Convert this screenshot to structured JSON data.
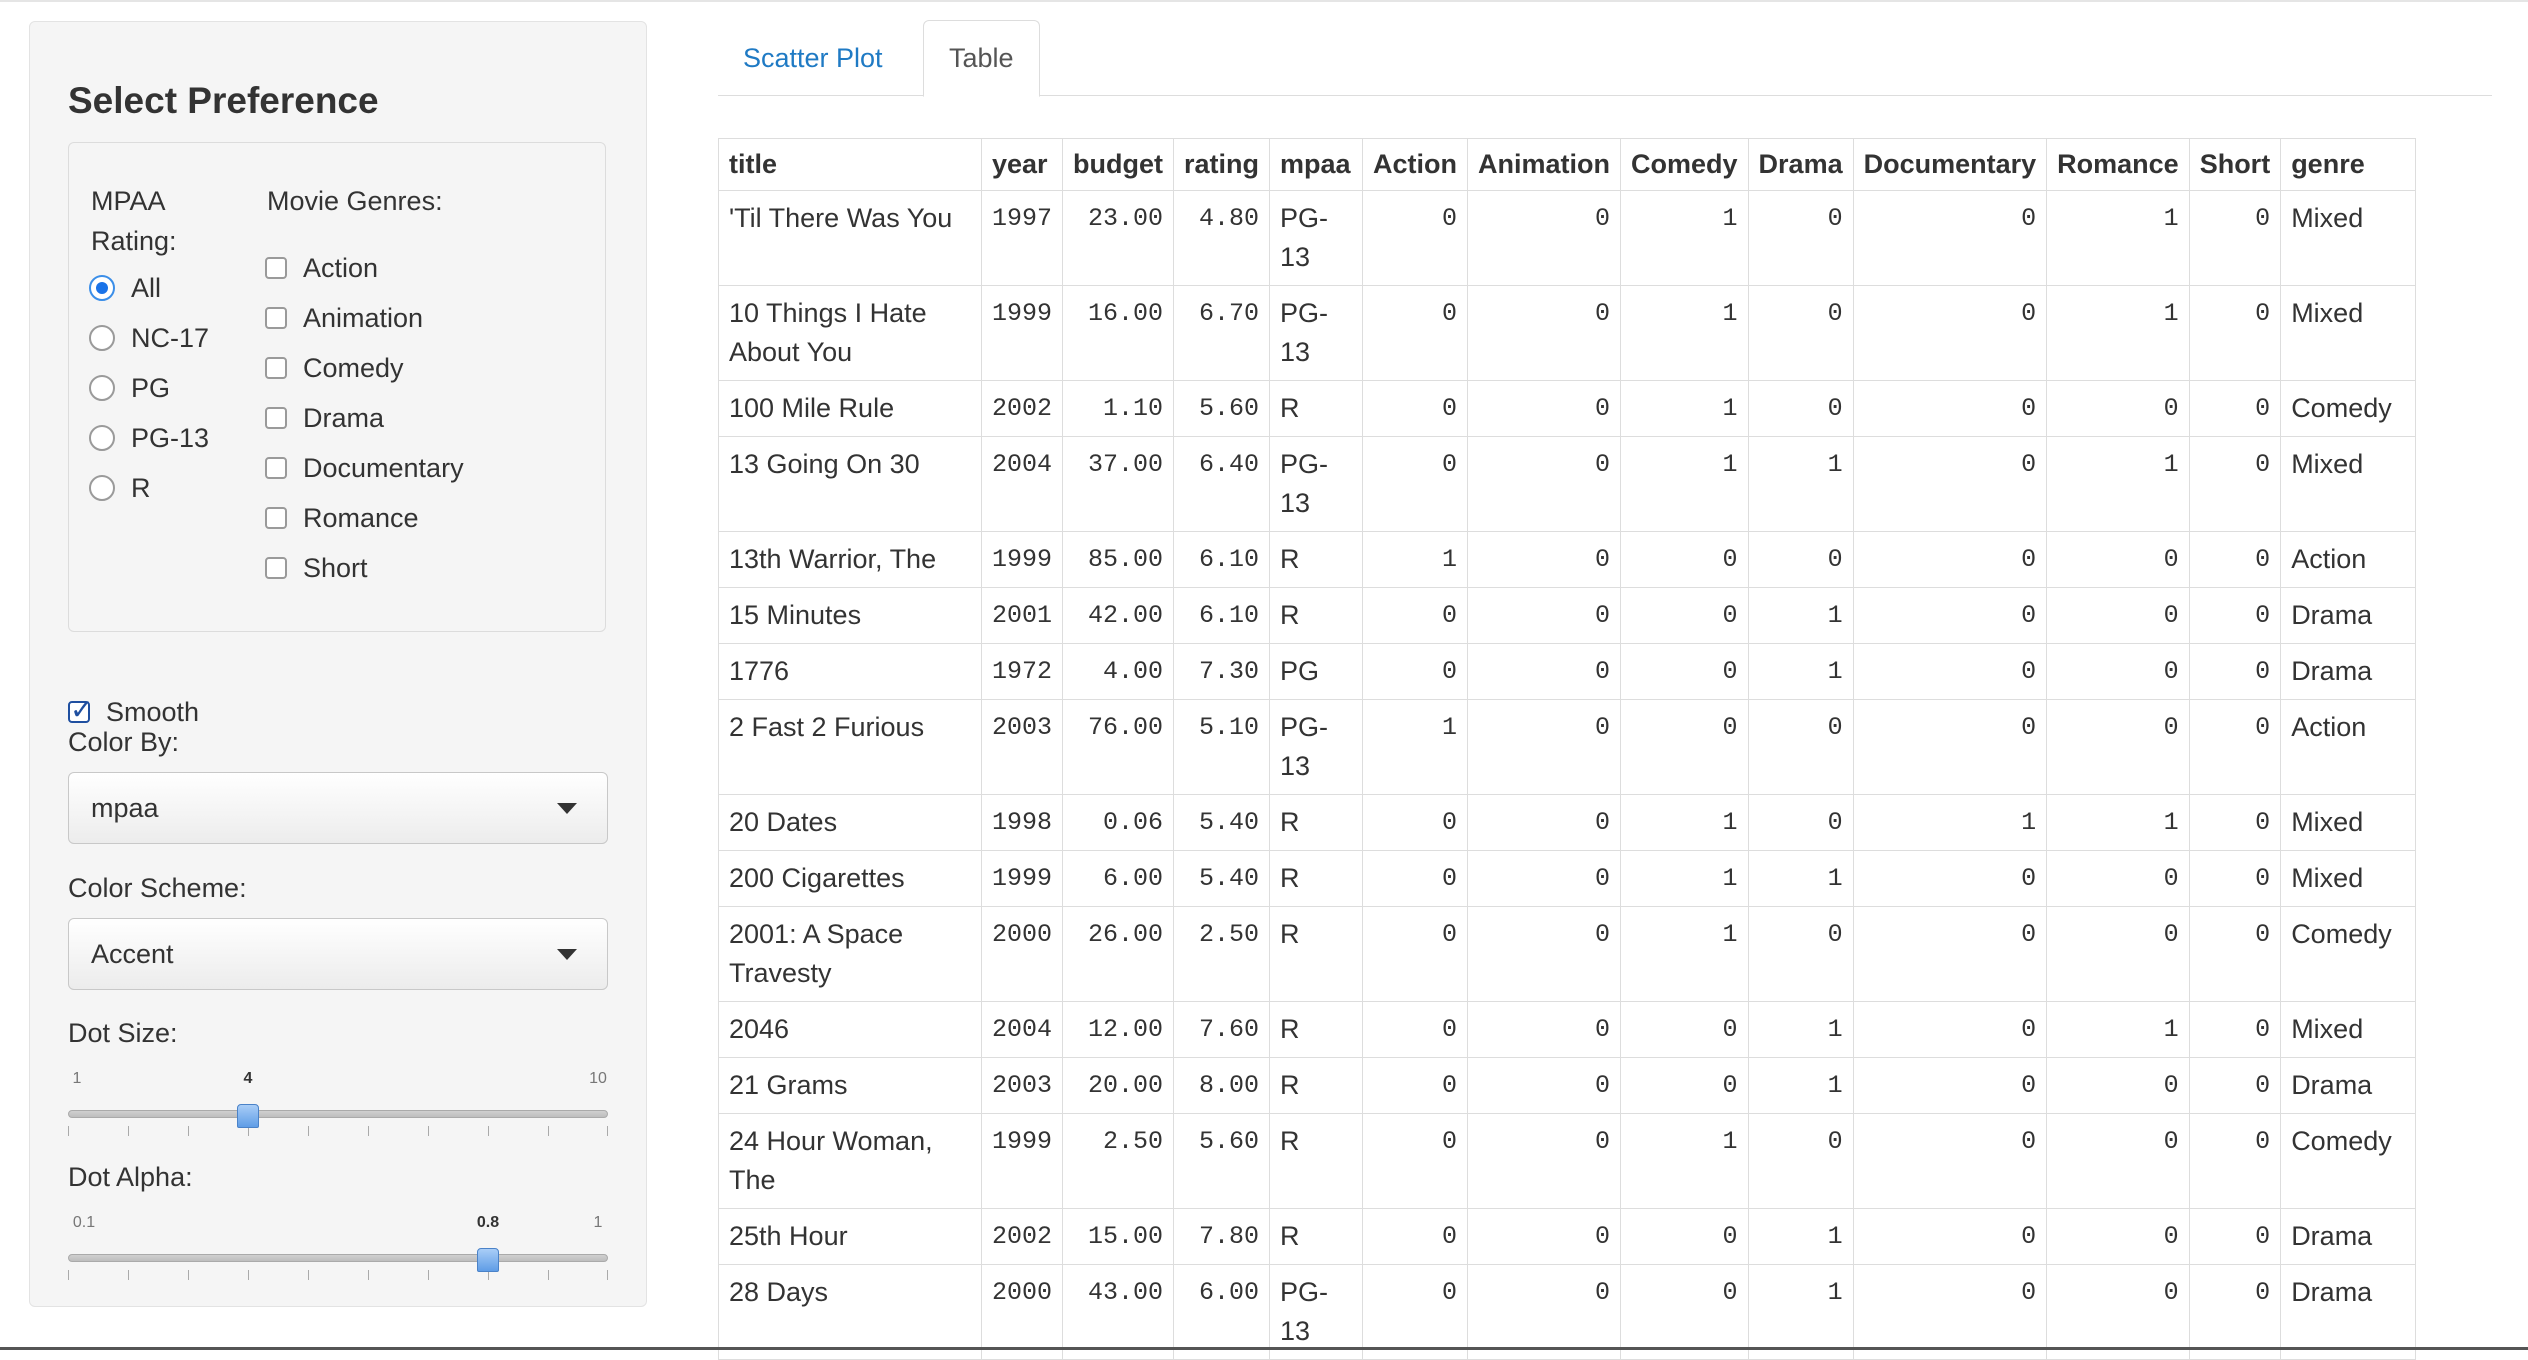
{
  "sidebar": {
    "title": "Select Preference",
    "mpaa": {
      "label": "MPAA Rating:",
      "options": [
        "All",
        "NC-17",
        "PG",
        "PG-13",
        "R"
      ],
      "selected": "All"
    },
    "genres": {
      "label": "Movie Genres:",
      "options": [
        "Action",
        "Animation",
        "Comedy",
        "Drama",
        "Documentary",
        "Romance",
        "Short"
      ]
    },
    "smooth": {
      "label": "Smooth",
      "checked": true
    },
    "color_by": {
      "label": "Color By:",
      "value": "mpaa"
    },
    "color_scheme": {
      "label": "Color Scheme:",
      "value": "Accent"
    },
    "dot_size": {
      "label": "Dot Size:",
      "min": "1",
      "max": "10",
      "value": "4"
    },
    "dot_alpha": {
      "label": "Dot Alpha:",
      "min": "0.1",
      "max": "1",
      "value": "0.8"
    }
  },
  "tabs": [
    {
      "label": "Scatter Plot",
      "active": false
    },
    {
      "label": "Table",
      "active": true
    }
  ],
  "table": {
    "columns": [
      "title",
      "year",
      "budget",
      "rating",
      "mpaa",
      "Action",
      "Animation",
      "Comedy",
      "Drama",
      "Documentary",
      "Romance",
      "Short",
      "genre"
    ],
    "rows": [
      [
        "'Til There Was You",
        "1997",
        "23.00",
        "4.80",
        "PG-13",
        "0",
        "0",
        "1",
        "0",
        "0",
        "1",
        "0",
        "Mixed"
      ],
      [
        "10 Things I Hate About You",
        "1999",
        "16.00",
        "6.70",
        "PG-13",
        "0",
        "0",
        "1",
        "0",
        "0",
        "1",
        "0",
        "Mixed"
      ],
      [
        "100 Mile Rule",
        "2002",
        "1.10",
        "5.60",
        "R",
        "0",
        "0",
        "1",
        "0",
        "0",
        "0",
        "0",
        "Comedy"
      ],
      [
        "13 Going On 30",
        "2004",
        "37.00",
        "6.40",
        "PG-13",
        "0",
        "0",
        "1",
        "1",
        "0",
        "1",
        "0",
        "Mixed"
      ],
      [
        "13th Warrior, The",
        "1999",
        "85.00",
        "6.10",
        "R",
        "1",
        "0",
        "0",
        "0",
        "0",
        "0",
        "0",
        "Action"
      ],
      [
        "15 Minutes",
        "2001",
        "42.00",
        "6.10",
        "R",
        "0",
        "0",
        "0",
        "1",
        "0",
        "0",
        "0",
        "Drama"
      ],
      [
        "1776",
        "1972",
        "4.00",
        "7.30",
        "PG",
        "0",
        "0",
        "0",
        "1",
        "0",
        "0",
        "0",
        "Drama"
      ],
      [
        "2 Fast 2 Furious",
        "2003",
        "76.00",
        "5.10",
        "PG-13",
        "1",
        "0",
        "0",
        "0",
        "0",
        "0",
        "0",
        "Action"
      ],
      [
        "20 Dates",
        "1998",
        "0.06",
        "5.40",
        "R",
        "0",
        "0",
        "1",
        "0",
        "1",
        "1",
        "0",
        "Mixed"
      ],
      [
        "200 Cigarettes",
        "1999",
        "6.00",
        "5.40",
        "R",
        "0",
        "0",
        "1",
        "1",
        "0",
        "0",
        "0",
        "Mixed"
      ],
      [
        "2001: A Space Travesty",
        "2000",
        "26.00",
        "2.50",
        "R",
        "0",
        "0",
        "1",
        "0",
        "0",
        "0",
        "0",
        "Comedy"
      ],
      [
        "2046",
        "2004",
        "12.00",
        "7.60",
        "R",
        "0",
        "0",
        "0",
        "1",
        "0",
        "1",
        "0",
        "Mixed"
      ],
      [
        "21 Grams",
        "2003",
        "20.00",
        "8.00",
        "R",
        "0",
        "0",
        "0",
        "1",
        "0",
        "0",
        "0",
        "Drama"
      ],
      [
        "24 Hour Woman, The",
        "1999",
        "2.50",
        "5.60",
        "R",
        "0",
        "0",
        "1",
        "0",
        "0",
        "0",
        "0",
        "Comedy"
      ],
      [
        "25th Hour",
        "2002",
        "15.00",
        "7.80",
        "R",
        "0",
        "0",
        "0",
        "1",
        "0",
        "0",
        "0",
        "Drama"
      ],
      [
        "28 Days",
        "2000",
        "43.00",
        "6.00",
        "PG-13",
        "0",
        "0",
        "0",
        "1",
        "0",
        "0",
        "0",
        "Drama"
      ]
    ]
  },
  "colors": {
    "accent": "#1f7ac4",
    "radio_selected": "#1a73e8",
    "border": "#dddddd"
  }
}
